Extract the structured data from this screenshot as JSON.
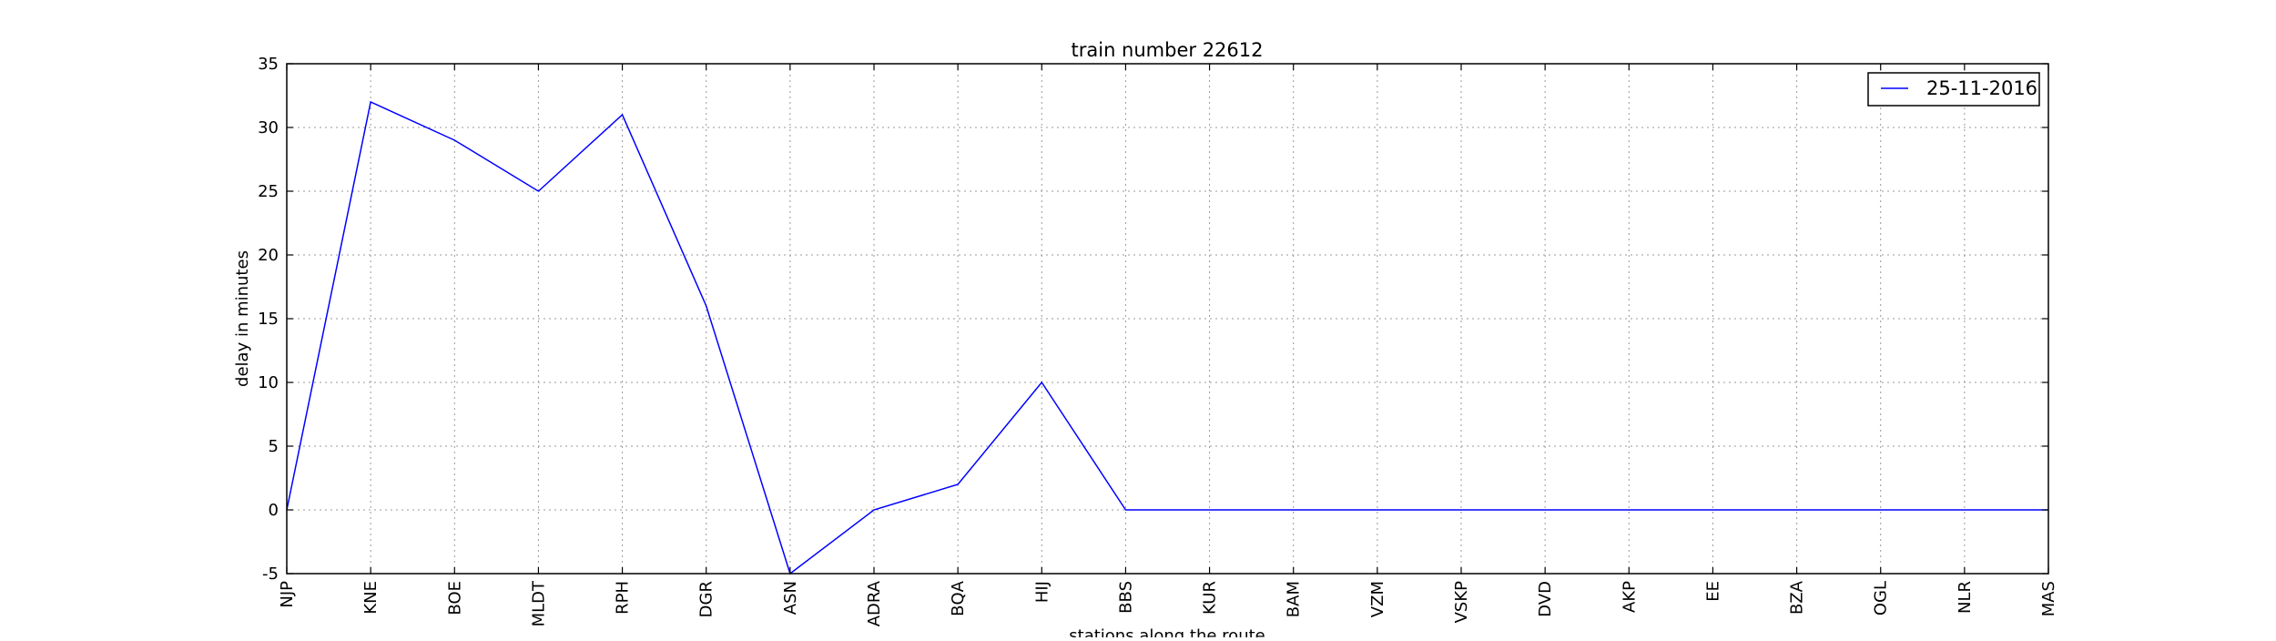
{
  "chart_data": {
    "type": "line",
    "title": "train number 22612",
    "xlabel": "stations along the route",
    "ylabel": "delay in minutes",
    "categories": [
      "NJP",
      "KNE",
      "BOE",
      "MLDT",
      "RPH",
      "DGR",
      "ASN",
      "ADRA",
      "BQA",
      "HIJ",
      "BBS",
      "KUR",
      "BAM",
      "VZM",
      "VSKP",
      "DVD",
      "AKP",
      "EE",
      "BZA",
      "OGL",
      "NLR",
      "MAS"
    ],
    "series": [
      {
        "name": "25-11-2016",
        "color": "#0000ff",
        "values": [
          0,
          32,
          29,
          25,
          31,
          16,
          -5,
          0,
          2,
          10,
          0,
          0,
          0,
          0,
          0,
          0,
          0,
          0,
          0,
          0,
          0,
          0
        ]
      }
    ],
    "ylim": [
      -5,
      35
    ],
    "yticks": [
      -5,
      0,
      5,
      10,
      15,
      20,
      25,
      30,
      35
    ],
    "grid": true,
    "legend_position": "top-right"
  }
}
